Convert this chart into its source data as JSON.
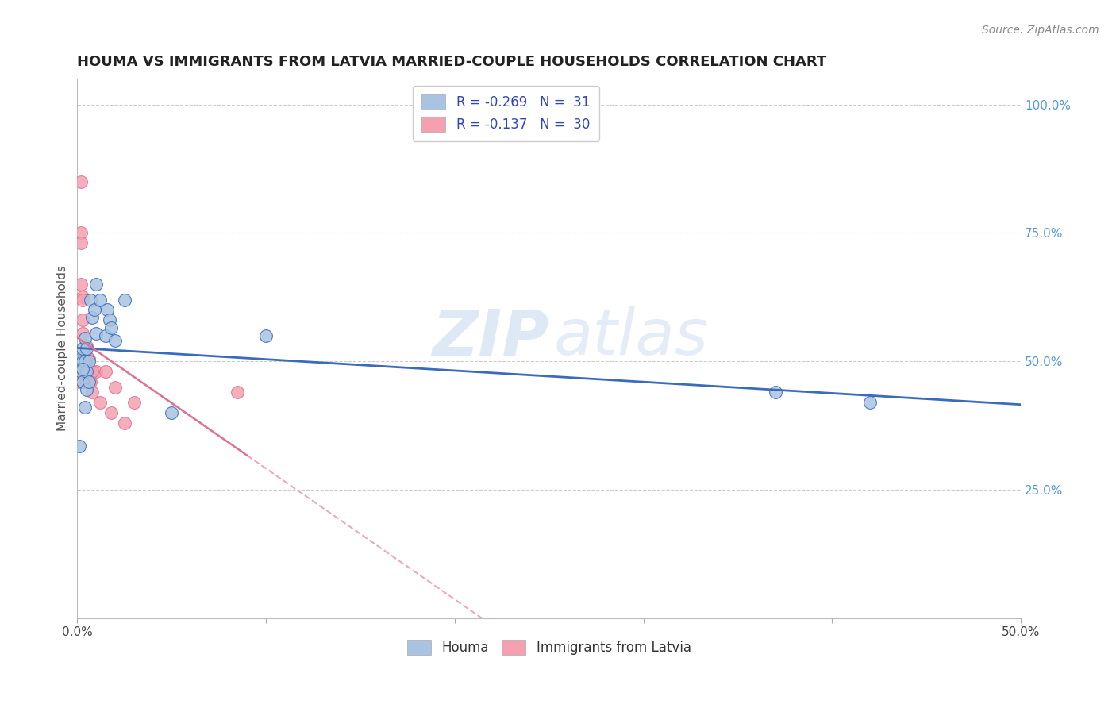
{
  "title": "HOUMA VS IMMIGRANTS FROM LATVIA MARRIED-COUPLE HOUSEHOLDS CORRELATION CHART",
  "source": "Source: ZipAtlas.com",
  "ylabel": "Married-couple Households",
  "xlabel_houma": "Houma",
  "xlabel_latvia": "Immigrants from Latvia",
  "xlim": [
    0.0,
    0.5
  ],
  "ylim": [
    0.0,
    1.05
  ],
  "x_ticks": [
    0.0,
    0.1,
    0.2,
    0.3,
    0.4,
    0.5
  ],
  "x_tick_labels": [
    "0.0%",
    "",
    "",
    "",
    "",
    "50.0%"
  ],
  "y_ticks_right": [
    0.25,
    0.5,
    0.75,
    1.0
  ],
  "y_tick_labels_right": [
    "25.0%",
    "50.0%",
    "75.0%",
    "100.0%"
  ],
  "legend_houma_R": "-0.269",
  "legend_houma_N": "31",
  "legend_latvia_R": "-0.137",
  "legend_latvia_N": "30",
  "houma_color": "#a8c4e0",
  "latvia_color": "#f4a0b0",
  "trend_houma_color": "#3a6bbf",
  "trend_latvia_color": "#e07090",
  "watermark_zip": "ZIP",
  "watermark_atlas": "atlas",
  "houma_x": [
    0.001,
    0.002,
    0.002,
    0.003,
    0.003,
    0.003,
    0.004,
    0.004,
    0.005,
    0.005,
    0.005,
    0.006,
    0.006,
    0.007,
    0.008,
    0.009,
    0.01,
    0.01,
    0.012,
    0.015,
    0.016,
    0.017,
    0.018,
    0.02,
    0.025,
    0.05,
    0.1,
    0.37,
    0.42,
    0.003,
    0.004
  ],
  "houma_y": [
    0.335,
    0.505,
    0.48,
    0.525,
    0.5,
    0.46,
    0.545,
    0.5,
    0.525,
    0.48,
    0.445,
    0.5,
    0.46,
    0.62,
    0.585,
    0.6,
    0.555,
    0.65,
    0.62,
    0.55,
    0.6,
    0.58,
    0.565,
    0.54,
    0.62,
    0.4,
    0.55,
    0.44,
    0.42,
    0.485,
    0.41
  ],
  "latvia_x": [
    0.001,
    0.001,
    0.001,
    0.001,
    0.002,
    0.002,
    0.002,
    0.003,
    0.003,
    0.003,
    0.004,
    0.004,
    0.005,
    0.005,
    0.006,
    0.007,
    0.008,
    0.01,
    0.012,
    0.015,
    0.018,
    0.02,
    0.025,
    0.03,
    0.085,
    0.002,
    0.003,
    0.004,
    0.005,
    0.008
  ],
  "latvia_y": [
    0.5,
    0.5,
    0.48,
    0.46,
    0.75,
    0.73,
    0.85,
    0.625,
    0.58,
    0.555,
    0.5,
    0.48,
    0.53,
    0.46,
    0.505,
    0.46,
    0.44,
    0.48,
    0.42,
    0.48,
    0.4,
    0.45,
    0.38,
    0.42,
    0.44,
    0.65,
    0.62,
    0.5,
    0.51,
    0.48
  ]
}
